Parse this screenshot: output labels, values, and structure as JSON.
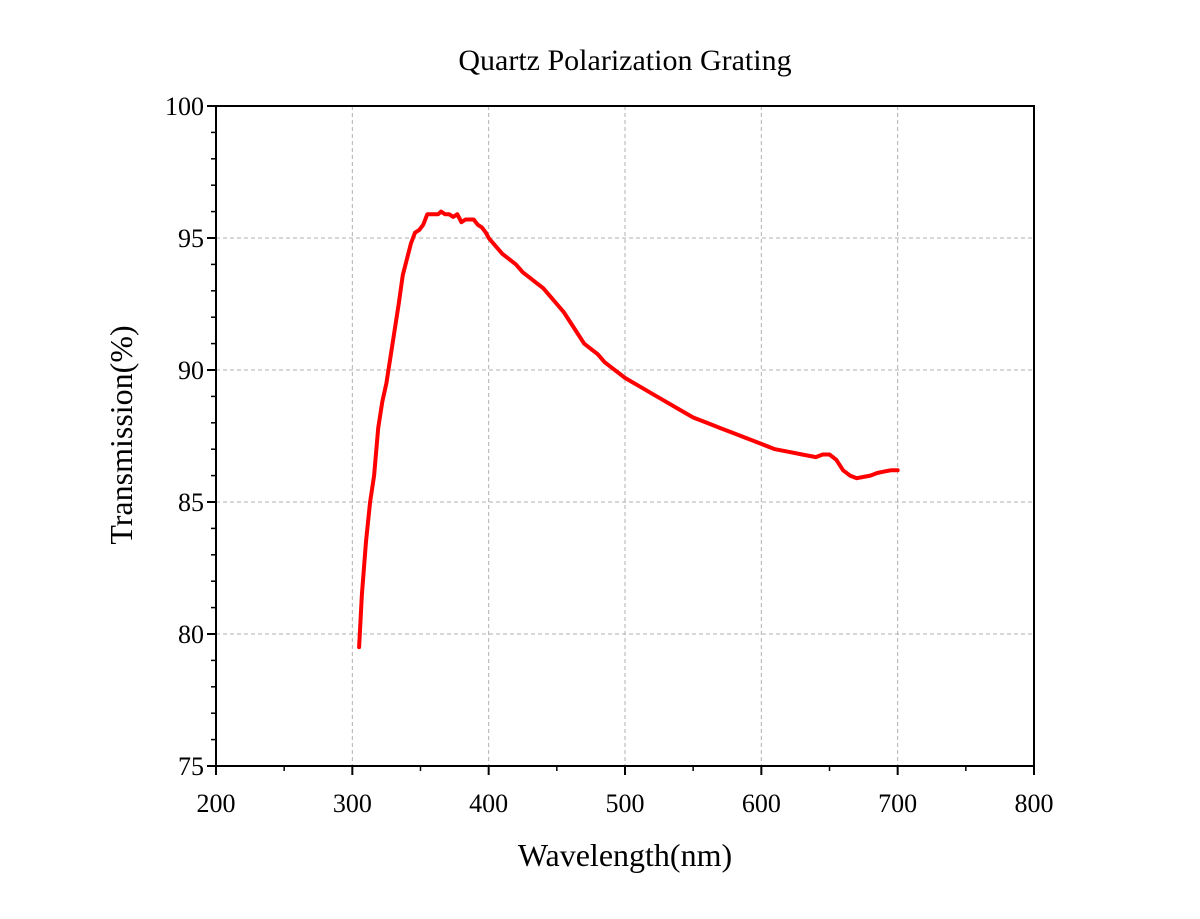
{
  "chart_data": {
    "type": "line",
    "title": "Quartz Polarization Grating",
    "xlabel": "Wavelength(nm)",
    "ylabel": "Transmission(%)",
    "xlim": [
      200,
      800
    ],
    "ylim": [
      75,
      100
    ],
    "x_ticks": [
      200,
      300,
      400,
      500,
      600,
      700,
      800
    ],
    "y_ticks": [
      75,
      80,
      85,
      90,
      95,
      100
    ],
    "x_tick_labels": [
      "200",
      "300",
      "400",
      "500",
      "600",
      "700",
      "800"
    ],
    "y_tick_labels": [
      "75",
      "80",
      "85",
      "90",
      "95",
      "100"
    ],
    "grid": true,
    "legend": "none",
    "series": [
      {
        "color": "#ff0000",
        "x": [
          305,
          307,
          310,
          313,
          316,
          319,
          322,
          325,
          328,
          331,
          334,
          337,
          340,
          343,
          346,
          349,
          352,
          355,
          358,
          361,
          363,
          365,
          368,
          371,
          374,
          377,
          380,
          383,
          386,
          389,
          392,
          395,
          398,
          400,
          405,
          410,
          415,
          420,
          425,
          430,
          435,
          440,
          445,
          450,
          455,
          460,
          465,
          470,
          475,
          480,
          485,
          490,
          495,
          500,
          510,
          520,
          530,
          540,
          550,
          560,
          570,
          580,
          590,
          600,
          610,
          620,
          630,
          640,
          645,
          650,
          655,
          660,
          665,
          670,
          675,
          680,
          685,
          690,
          695,
          700
        ],
        "y": [
          79.5,
          81.5,
          83.5,
          85.0,
          86.0,
          87.8,
          88.8,
          89.5,
          90.5,
          91.5,
          92.5,
          93.6,
          94.2,
          94.8,
          95.2,
          95.3,
          95.5,
          95.9,
          95.9,
          95.9,
          95.9,
          96.0,
          95.9,
          95.9,
          95.8,
          95.9,
          95.6,
          95.7,
          95.7,
          95.7,
          95.5,
          95.4,
          95.2,
          95.0,
          94.7,
          94.4,
          94.2,
          94.0,
          93.7,
          93.5,
          93.3,
          93.1,
          92.8,
          92.5,
          92.2,
          91.8,
          91.4,
          91.0,
          90.8,
          90.6,
          90.3,
          90.1,
          89.9,
          89.7,
          89.4,
          89.1,
          88.8,
          88.5,
          88.2,
          88.0,
          87.8,
          87.6,
          87.4,
          87.2,
          87.0,
          86.9,
          86.8,
          86.7,
          86.8,
          86.8,
          86.6,
          86.2,
          86.0,
          85.9,
          85.95,
          86.0,
          86.1,
          86.15,
          86.2,
          86.2
        ]
      }
    ]
  }
}
